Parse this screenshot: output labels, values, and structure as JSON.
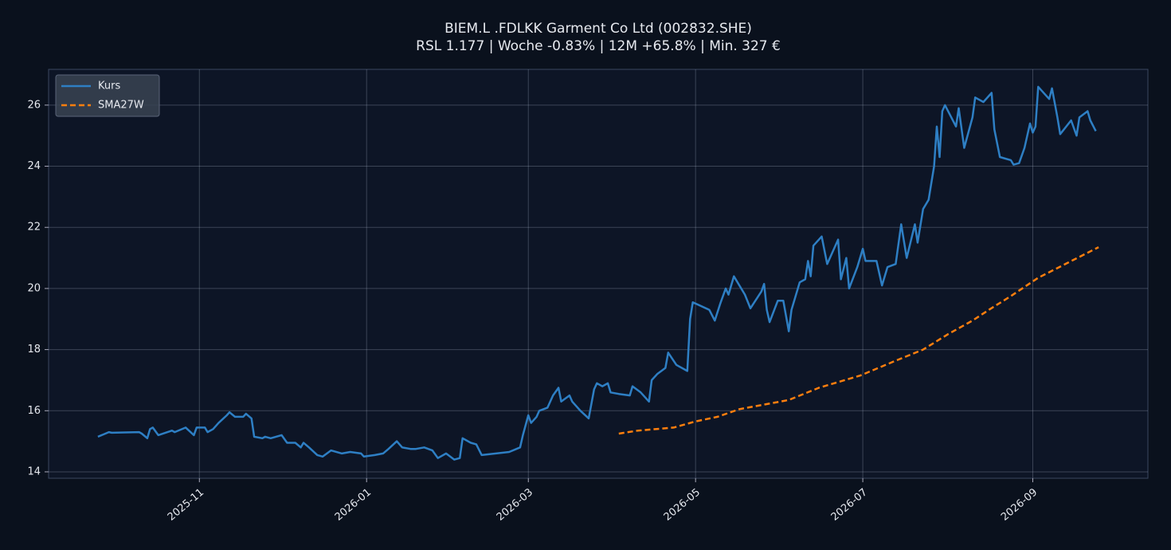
{
  "chart_data": {
    "type": "line",
    "title": "BIEM.L .FDLKK Garment Co Ltd (002832.SHE)",
    "subtitle": "RSL 1.177 | Woche -0.83% | 12M +65.8% | Min. 327 €",
    "xlim": [
      -55,
      346
    ],
    "xticks": [
      {
        "value": 0,
        "label": "2025-11"
      },
      {
        "value": 61,
        "label": "2026-01"
      },
      {
        "value": 120,
        "label": "2026-03"
      },
      {
        "value": 181,
        "label": "2026-05"
      },
      {
        "value": 242,
        "label": "2026-07"
      },
      {
        "value": 304,
        "label": "2026-09"
      }
    ],
    "ylim": [
      13.79,
      27.17
    ],
    "yticks": [
      14,
      16,
      18,
      20,
      22,
      24,
      26
    ],
    "grid": true,
    "legend": "upper left",
    "series": [
      {
        "name": "Kurs",
        "color": "#2e7fc4",
        "dash": "solid",
        "x": [
          -37,
          -33,
          -32,
          -22,
          -21,
          -19,
          -18,
          -17,
          -15,
          -10,
          -9,
          -5,
          -2,
          -1,
          2,
          3,
          5,
          7,
          10,
          11,
          13,
          16,
          17,
          19,
          20,
          23,
          24,
          26,
          30,
          32,
          35,
          37,
          38,
          40,
          43,
          45,
          48,
          52,
          55,
          59,
          60,
          64,
          67,
          69,
          72,
          74,
          77,
          79,
          82,
          85,
          87,
          90,
          93,
          95,
          96,
          99,
          101,
          103,
          113,
          117,
          118,
          120,
          121,
          123,
          124,
          127,
          129,
          131,
          132,
          135,
          136,
          139,
          142,
          144,
          145,
          147,
          149,
          150,
          153,
          157,
          158,
          161,
          164,
          165,
          167,
          170,
          171,
          174,
          178,
          179,
          180,
          186,
          188,
          190,
          192,
          193,
          195,
          199,
          201,
          205,
          206,
          207,
          208,
          211,
          213,
          215,
          216,
          219,
          221,
          222,
          223,
          224,
          227,
          229,
          233,
          234,
          236,
          237,
          240,
          242,
          243,
          247,
          249,
          251,
          254,
          256,
          258,
          261,
          262,
          264,
          266,
          268,
          269,
          270,
          271,
          272,
          276,
          277,
          279,
          282,
          283,
          286,
          289,
          290,
          292,
          296,
          297,
          299,
          301,
          303,
          304,
          305,
          306,
          310,
          311,
          313,
          314,
          318,
          320,
          321,
          324,
          325,
          327
        ],
        "values": [
          15.15,
          15.3,
          15.28,
          15.3,
          15.25,
          15.1,
          15.4,
          15.45,
          15.2,
          15.35,
          15.3,
          15.45,
          15.2,
          15.45,
          15.45,
          15.3,
          15.4,
          15.6,
          15.85,
          15.95,
          15.8,
          15.8,
          15.9,
          15.75,
          15.15,
          15.1,
          15.15,
          15.1,
          15.2,
          14.95,
          14.95,
          14.8,
          14.95,
          14.8,
          14.55,
          14.5,
          14.7,
          14.6,
          14.65,
          14.6,
          14.5,
          14.55,
          14.6,
          14.75,
          15.0,
          14.8,
          14.75,
          14.75,
          14.8,
          14.7,
          14.45,
          14.6,
          14.4,
          14.45,
          15.1,
          14.95,
          14.9,
          14.55,
          14.65,
          14.8,
          15.2,
          15.85,
          15.6,
          15.8,
          16.0,
          16.1,
          16.5,
          16.75,
          16.3,
          16.5,
          16.3,
          16.0,
          15.75,
          16.7,
          16.9,
          16.8,
          16.9,
          16.6,
          16.55,
          16.5,
          16.8,
          16.6,
          16.3,
          17.0,
          17.2,
          17.4,
          17.9,
          17.5,
          17.3,
          19.0,
          19.55,
          19.3,
          18.95,
          19.5,
          20.0,
          19.8,
          20.4,
          19.8,
          19.35,
          19.9,
          20.15,
          19.3,
          18.9,
          19.6,
          19.6,
          18.6,
          19.3,
          20.2,
          20.3,
          20.9,
          20.4,
          21.4,
          21.7,
          20.8,
          21.6,
          20.3,
          21.0,
          20.0,
          20.7,
          21.3,
          20.9,
          20.9,
          20.1,
          20.7,
          20.8,
          22.1,
          21.0,
          22.1,
          21.5,
          22.6,
          22.9,
          24.0,
          25.3,
          24.3,
          25.8,
          26.0,
          25.3,
          25.9,
          24.6,
          25.6,
          26.25,
          26.1,
          26.4,
          25.2,
          24.3,
          24.2,
          24.05,
          24.1,
          24.6,
          25.4,
          25.1,
          25.3,
          26.6,
          26.2,
          26.55,
          25.6,
          25.05,
          25.5,
          25.0,
          25.6,
          25.8,
          25.5,
          25.15
        ]
      },
      {
        "name": "SMA27W",
        "color": "#ff7f0e",
        "dash": "dashed",
        "x": [
          153,
          160,
          173,
          181,
          189,
          197,
          206,
          215,
          226,
          241,
          253,
          264,
          273,
          282,
          288,
          296,
          306,
          317,
          328
        ],
        "values": [
          15.25,
          15.35,
          15.45,
          15.65,
          15.8,
          16.05,
          16.2,
          16.35,
          16.75,
          17.15,
          17.6,
          18.0,
          18.5,
          18.95,
          19.3,
          19.75,
          20.35,
          20.85,
          21.35
        ]
      }
    ]
  }
}
